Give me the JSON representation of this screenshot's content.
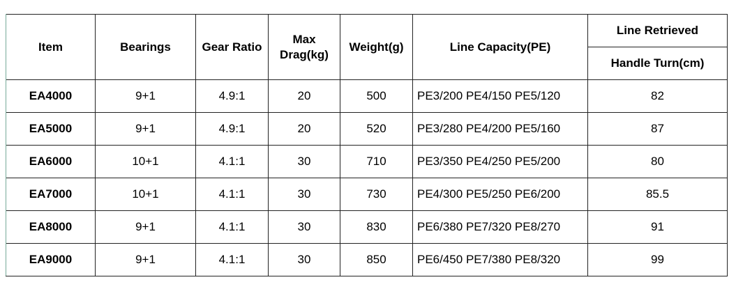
{
  "table": {
    "header": [
      "Item",
      "Bearings",
      "Gear Ratio",
      "Max Drag(kg)",
      "Weight(g)",
      "Line Capacity(PE)"
    ],
    "header_group": "Line Retrieved",
    "header_sub": "Handle Turn(cm)",
    "rows": [
      [
        "EA4000",
        "9+1",
        "4.9:1",
        "20",
        "500",
        "PE3/200 PE4/150 PE5/120",
        "82"
      ],
      [
        "EA5000",
        "9+1",
        "4.9:1",
        "20",
        "520",
        "PE3/280 PE4/200 PE5/160",
        "87"
      ],
      [
        "EA6000",
        "10+1",
        "4.1:1",
        "30",
        "710",
        "PE3/350 PE4/250 PE5/200",
        "80"
      ],
      [
        "EA7000",
        "10+1",
        "4.1:1",
        "30",
        "730",
        "PE4/300 PE5/250 PE6/200",
        "85.5"
      ],
      [
        "EA8000",
        "9+1",
        "4.1:1",
        "30",
        "830",
        "PE6/380 PE7/320 PE8/270",
        "91"
      ],
      [
        "EA9000",
        "9+1",
        "4.1:1",
        "30",
        "850",
        "PE6/450 PE7/380 PE8/320",
        "99"
      ]
    ]
  }
}
